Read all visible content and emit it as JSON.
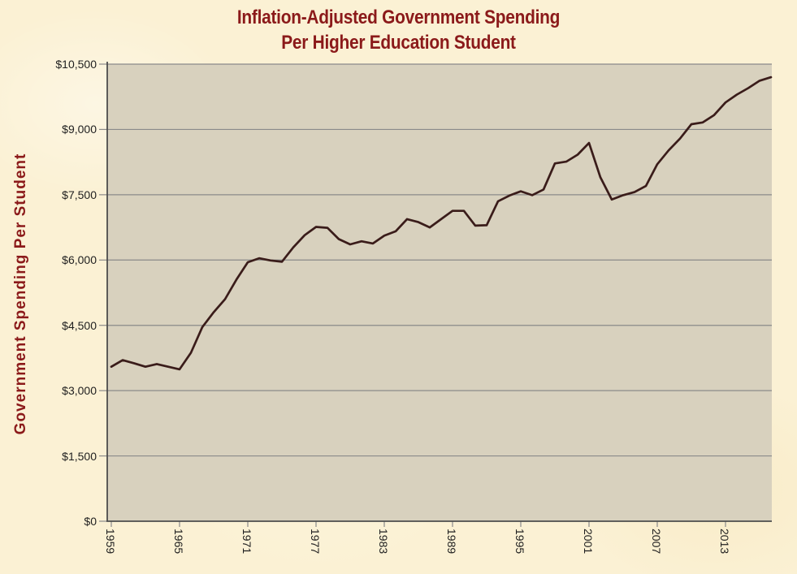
{
  "title": {
    "line1": "Inflation-Adjusted Government Spending",
    "line2": "Per Higher Education Student"
  },
  "chart_data": {
    "type": "line",
    "title": "Inflation-Adjusted Government Spending Per Higher Education Student",
    "xlabel": "",
    "ylabel": "Government Spending Per Student",
    "x": [
      1959,
      1960,
      1961,
      1962,
      1963,
      1964,
      1965,
      1966,
      1967,
      1968,
      1969,
      1970,
      1971,
      1972,
      1973,
      1974,
      1975,
      1976,
      1977,
      1978,
      1979,
      1980,
      1981,
      1982,
      1983,
      1984,
      1985,
      1986,
      1987,
      1988,
      1989,
      1990,
      1991,
      1992,
      1993,
      1994,
      1995,
      1996,
      1997,
      1998,
      1999,
      2000,
      2001,
      2002,
      2003,
      2004,
      2005,
      2006,
      2007,
      2008,
      2009,
      2010,
      2011,
      2012,
      2013,
      2014,
      2015,
      2016,
      2017
    ],
    "values": [
      3550,
      3700,
      3630,
      3550,
      3610,
      3550,
      3490,
      3870,
      4460,
      4800,
      5100,
      5550,
      5950,
      6040,
      5990,
      5960,
      6290,
      6570,
      6760,
      6740,
      6480,
      6360,
      6430,
      6380,
      6560,
      6660,
      6940,
      6870,
      6750,
      6940,
      7130,
      7130,
      6790,
      6800,
      7350,
      7480,
      7580,
      7490,
      7620,
      8220,
      8260,
      8420,
      8690,
      7900,
      7390,
      7490,
      7560,
      7700,
      8200,
      8520,
      8790,
      9120,
      9160,
      9330,
      9620,
      9800,
      9950,
      10120,
      10200
    ],
    "ylim": [
      0,
      10500
    ],
    "y_tick_step": 1500,
    "y_tick_labels": [
      "$0",
      "$1,500",
      "$3,000",
      "$4,500",
      "$6,000",
      "$7,500",
      "$9,000",
      "$10,500"
    ],
    "x_tick_labels": [
      "1959",
      "1965",
      "1971",
      "1977",
      "1983",
      "1989",
      "1995",
      "2001",
      "2007",
      "2013"
    ],
    "x_tick_years": [
      1959,
      1965,
      1971,
      1977,
      1983,
      1989,
      1995,
      2001,
      2007,
      2013
    ],
    "grid": "horizontal",
    "legend": "none"
  },
  "colors": {
    "background": "#FBF1D4",
    "plot_background": "#D8D1BE",
    "line": "#3A1C1A",
    "gridline": "#8A8A8A",
    "axis": "#4D4D4D",
    "title_text": "#8B1A1A",
    "tick_text": "#1F1F1F"
  }
}
